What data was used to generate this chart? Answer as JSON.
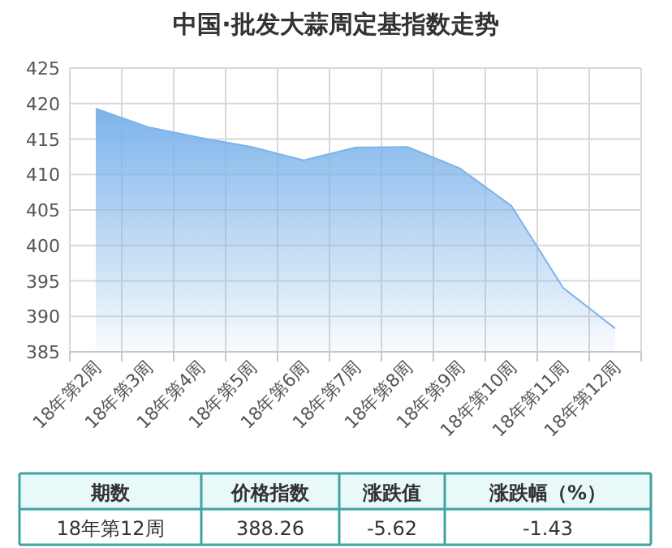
{
  "chart_data": {
    "type": "area",
    "title": "中国·批发大蒜周定基指数走势",
    "categories": [
      "18年第2周",
      "18年第3周",
      "18年第4周",
      "18年第5周",
      "18年第6周",
      "18年第7周",
      "18年第8周",
      "18年第9周",
      "18年第10周",
      "18年第11周",
      "18年第12周"
    ],
    "series": [
      {
        "color": "#7db3ea",
        "values": [
          419.3,
          416.7,
          415.2,
          413.9,
          412.0,
          413.8,
          413.9,
          410.9,
          405.6,
          394.0,
          388.3
        ]
      }
    ],
    "ylim": [
      385,
      425
    ],
    "yticks": [
      385,
      390,
      395,
      400,
      405,
      410,
      415,
      420,
      425
    ],
    "grid": true,
    "marker": "none",
    "line_style": "solid",
    "annotations": [
      "期数",
      "价格指数",
      "涨跌值",
      "涨跌幅（%）",
      "18年第12周",
      "388.26",
      "-5.62",
      "-1.43"
    ]
  }
}
